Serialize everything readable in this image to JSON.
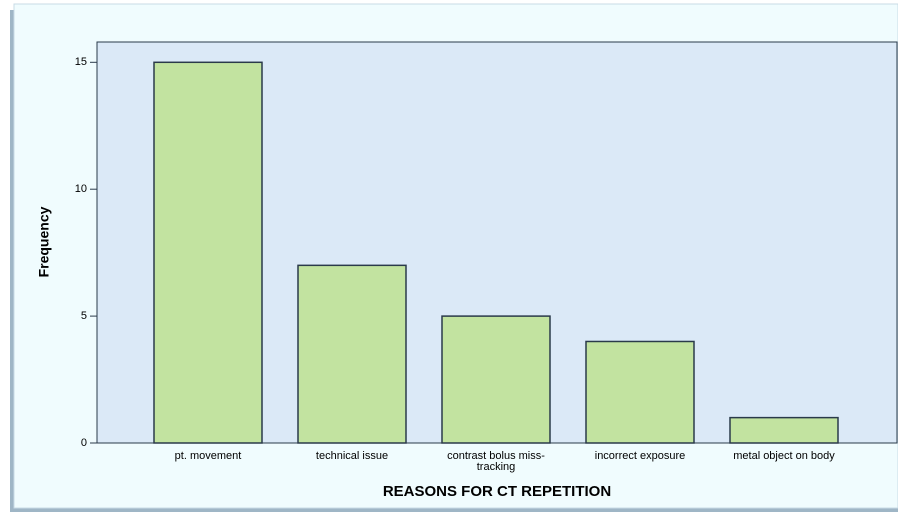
{
  "chart_data": {
    "type": "bar",
    "x_label": "REASONS FOR CT REPETITION",
    "y_label": "Frequency",
    "categories": [
      "pt. movement",
      "technical issue",
      "contrast bolus miss-tracking",
      "incorrect exposure",
      "metal object on body"
    ],
    "values": [
      15,
      7,
      5,
      4,
      1
    ],
    "color": "#c2e3a0",
    "ylim": [
      0,
      15.8
    ],
    "yticks": [
      0,
      5,
      10,
      15
    ],
    "grid": false
  }
}
